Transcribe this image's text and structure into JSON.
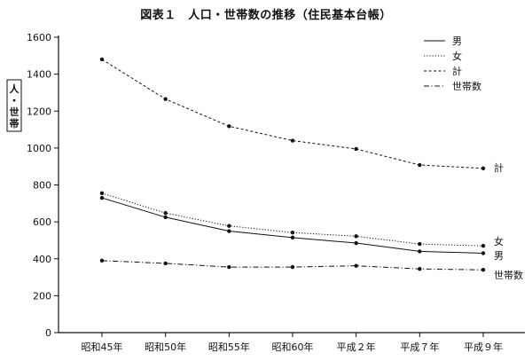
{
  "title": "図表１　人口・世帯数の推移（住民基本台帳）",
  "chart_data": {
    "type": "line",
    "title": "図表１　人口・世帯数の推移（住民基本台帳）",
    "ylabel_chars": [
      "人",
      "・",
      "世",
      "帯"
    ],
    "ylim": [
      0,
      1600
    ],
    "yticks": [
      0,
      200,
      400,
      600,
      800,
      1000,
      1200,
      1400,
      1600
    ],
    "categories": [
      "昭和45年",
      "昭和50年",
      "昭和55年",
      "昭和60年",
      "平成２年",
      "平成７年",
      "平成９年"
    ],
    "series": [
      {
        "name": "男",
        "end_label": "男",
        "values": [
          730,
          625,
          550,
          515,
          485,
          440,
          430
        ],
        "style": "solid"
      },
      {
        "name": "女",
        "end_label": "女",
        "values": [
          755,
          648,
          578,
          542,
          522,
          480,
          470
        ],
        "style": "dotted"
      },
      {
        "name": "計",
        "end_label": "計",
        "values": [
          1480,
          1265,
          1118,
          1040,
          995,
          908,
          890
        ],
        "style": "dashed"
      },
      {
        "name": "世帯数",
        "end_label": "世帯数",
        "values": [
          390,
          375,
          355,
          355,
          362,
          345,
          340
        ],
        "style": "dashdot"
      }
    ],
    "grid": false,
    "legend_position": "top-right"
  }
}
